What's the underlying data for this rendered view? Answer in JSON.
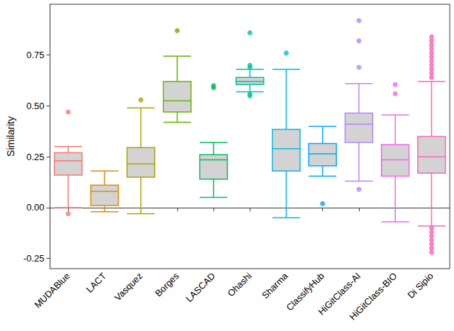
{
  "chart_data": {
    "type": "boxplot",
    "y_label": "Similarity",
    "categories": [
      "MUDABlue",
      "LACT",
      "Vasquez",
      "Borges",
      "LASCAD",
      "Ohashi",
      "Sharma",
      "ClassifyHub",
      "HiGitClass-AI",
      "HiGitClass-BIO",
      "Di Sipio"
    ],
    "values": [
      [
        0.0,
        0.16,
        0.23,
        0.27,
        0.3
      ],
      [
        -0.02,
        0.01,
        0.08,
        0.11,
        0.18
      ],
      [
        -0.03,
        0.15,
        0.215,
        0.295,
        0.49
      ],
      [
        0.42,
        0.47,
        0.525,
        0.62,
        0.745
      ],
      [
        0.05,
        0.14,
        0.235,
        0.26,
        0.32
      ],
      [
        0.57,
        0.605,
        0.62,
        0.64,
        0.68
      ],
      [
        -0.05,
        0.18,
        0.29,
        0.385,
        0.68
      ],
      [
        0.155,
        0.205,
        0.265,
        0.315,
        0.4
      ],
      [
        0.13,
        0.32,
        0.41,
        0.465,
        0.61
      ],
      [
        -0.07,
        0.155,
        0.235,
        0.31,
        0.455
      ],
      [
        -0.09,
        0.17,
        0.25,
        0.35,
        0.62
      ]
    ],
    "outliers": [
      [
        0.47,
        -0.03
      ],
      [],
      [
        0.53
      ],
      [
        0.87
      ],
      [
        0.59,
        0.6
      ],
      [
        0.86,
        0.7,
        0.69,
        0.55,
        0.56
      ],
      [
        0.76
      ],
      [
        0.02
      ],
      [
        0.92,
        0.82,
        0.69,
        0.09
      ],
      [
        0.56,
        0.605
      ],
      [
        0.64,
        0.66,
        0.68,
        0.7,
        0.72,
        0.74,
        0.76,
        0.78,
        0.8,
        0.82,
        0.84,
        -0.1,
        -0.12,
        -0.14,
        -0.16,
        -0.18,
        -0.2,
        -0.22
      ]
    ],
    "color": "#d3d3d3",
    "colors": [
      "#F8766D",
      "#DB8E00",
      "#AEA200",
      "#64B200",
      "#00BD5C",
      "#00C1A7",
      "#00BADE",
      "#00A6FF",
      "#B385FF",
      "#EF67EB",
      "#FF63B6"
    ],
    "ylim": [
      -0.3,
      1.0
    ],
    "yticks": [
      {
        "value": -0.25,
        "label": "-0.25"
      },
      {
        "value": 0,
        "label": "0.00"
      },
      {
        "value": 0.25,
        "label": "0.25"
      },
      {
        "value": 0.5,
        "label": "0.50"
      },
      {
        "value": 0.75,
        "label": "0.75"
      }
    ],
    "grid": false
  }
}
